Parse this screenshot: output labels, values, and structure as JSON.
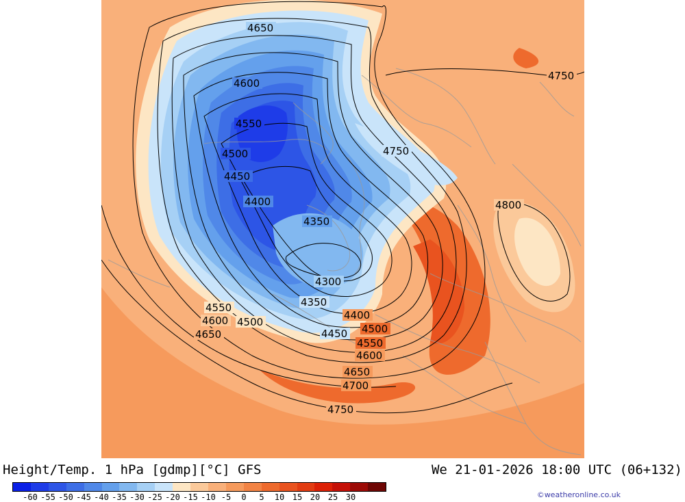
{
  "header": {
    "title": "Height/Temp. 1 hPa [gdmp][°C] GFS",
    "valid_time": "We 21-01-2026 18:00 UTC (06+132)"
  },
  "credit": "©weatheronline.co.uk",
  "legend": {
    "colors": [
      "#0a1fe6",
      "#1e3ce8",
      "#2d55e6",
      "#3d6ee6",
      "#5088e8",
      "#64a0ec",
      "#82b8f0",
      "#a6d0f5",
      "#c9e4fa",
      "#fde6c4",
      "#fbc99a",
      "#f9b07a",
      "#f69a5c",
      "#f28344",
      "#ee6a2d",
      "#e9531f",
      "#e23c12",
      "#dc2006",
      "#c51007",
      "#9c0a06",
      "#6e0604"
    ],
    "ticks": [
      "-60",
      "-55",
      "-50",
      "-45",
      "-40",
      "-35",
      "-30",
      "-25",
      "-20",
      "-15",
      "-10",
      "-5",
      "0",
      "5",
      "10",
      "15",
      "20",
      "25",
      "30"
    ]
  },
  "contour_labels": [
    {
      "text": "4650"
    },
    {
      "text": "4750"
    },
    {
      "text": "4600"
    },
    {
      "text": "4550"
    },
    {
      "text": "4500"
    },
    {
      "text": "4450"
    },
    {
      "text": "4750"
    },
    {
      "text": "4400"
    },
    {
      "text": "4800"
    },
    {
      "text": "4350"
    },
    {
      "text": "4300"
    },
    {
      "text": "4350"
    },
    {
      "text": "4550"
    },
    {
      "text": "4400"
    },
    {
      "text": "4600"
    },
    {
      "text": "4500"
    },
    {
      "text": "4500"
    },
    {
      "text": "4650"
    },
    {
      "text": "4450"
    },
    {
      "text": "4550"
    },
    {
      "text": "4600"
    },
    {
      "text": "4650"
    },
    {
      "text": "4700"
    },
    {
      "text": "4750"
    }
  ]
}
